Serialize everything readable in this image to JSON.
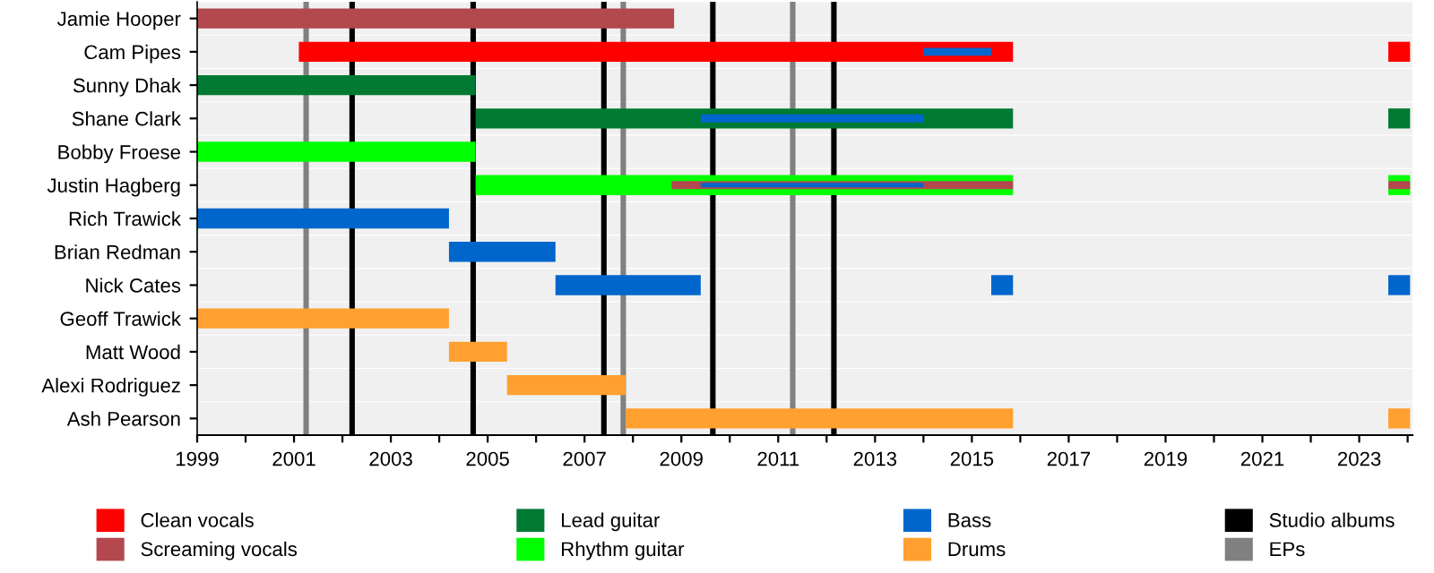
{
  "chart_data": {
    "type": "bar",
    "orientation": "horizontal",
    "grid": "y",
    "legend": "bottom",
    "categories": [
      "Jamie Hooper",
      "Cam Pipes",
      "Sunny Dhak",
      "Shane Clark",
      "Bobby Froese",
      "Justin Hagberg",
      "Rich Trawick",
      "Brian Redman",
      "Nick Cates",
      "Geoff Trawick",
      "Matt Wood",
      "Alexi Rodriguez",
      "Ash Pearson"
    ],
    "xlim": [
      1999,
      2024.1
    ],
    "xticks": [
      1999,
      {
        "value": 2000,
        "label": null
      },
      2001,
      {
        "value": 2002,
        "label": null
      },
      2003,
      {
        "value": 2004,
        "label": null
      },
      2005,
      {
        "value": 2006,
        "label": null
      },
      2007,
      {
        "value": 2008,
        "label": null
      },
      2009,
      {
        "value": 2010,
        "label": null
      },
      2011,
      {
        "value": 2012,
        "label": null
      },
      2013,
      {
        "value": 2014,
        "label": null
      },
      2015,
      {
        "value": 2016,
        "label": null
      },
      2017,
      {
        "value": 2018,
        "label": null
      },
      2019,
      {
        "value": 2020,
        "label": null
      },
      2021,
      {
        "value": 2022,
        "label": null
      },
      2023,
      {
        "value": 2024,
        "label": null
      }
    ],
    "series": [
      {
        "name": "Clean vocals",
        "color": "#ff0000",
        "base": [
          null,
          2001.1,
          null,
          null,
          null,
          null,
          null,
          null,
          null,
          null,
          null,
          null,
          null
        ],
        "values": [
          null,
          14.75,
          null,
          null,
          null,
          null,
          null,
          null,
          null,
          null,
          null,
          null,
          null
        ]
      },
      {
        "color": "#ff0000",
        "base": [
          null,
          2023.6,
          null,
          null,
          null,
          null,
          null,
          null,
          null,
          null,
          null,
          null,
          null
        ],
        "values": [
          null,
          0.45,
          null,
          null,
          null,
          null,
          null,
          null,
          null,
          null,
          null,
          null,
          null
        ]
      },
      {
        "name": "Screaming vocals",
        "color": "#b3484f",
        "base": [
          1999,
          null,
          null,
          null,
          null,
          null,
          null,
          null,
          null,
          null,
          null,
          null,
          null
        ],
        "values": [
          9.85,
          null,
          null,
          null,
          null,
          null,
          null,
          null,
          null,
          null,
          null,
          null,
          null
        ]
      },
      {
        "name": "Lead guitar",
        "color": "#007a33",
        "base": [
          null,
          null,
          1999,
          2004.75,
          null,
          null,
          null,
          null,
          null,
          null,
          null,
          null,
          null
        ],
        "values": [
          null,
          null,
          5.75,
          11.1,
          null,
          null,
          null,
          null,
          null,
          null,
          null,
          null,
          null
        ]
      },
      {
        "color": "#007a33",
        "base": [
          null,
          null,
          null,
          2023.6,
          null,
          null,
          null,
          null,
          null,
          null,
          null,
          null,
          null
        ],
        "values": [
          null,
          null,
          null,
          0.45,
          null,
          null,
          null,
          null,
          null,
          null,
          null,
          null,
          null
        ]
      },
      {
        "name": "Rhythm guitar",
        "color": "#00ff00",
        "base": [
          null,
          null,
          null,
          null,
          1999,
          2004.75,
          null,
          null,
          null,
          null,
          null,
          null,
          null
        ],
        "values": [
          null,
          null,
          null,
          null,
          5.75,
          11.1,
          null,
          null,
          null,
          null,
          null,
          null,
          null
        ]
      },
      {
        "color": "#00ff00",
        "base": [
          null,
          null,
          null,
          null,
          null,
          2023.6,
          null,
          null,
          null,
          null,
          null,
          null,
          null
        ],
        "values": [
          null,
          null,
          null,
          null,
          null,
          0.45,
          null,
          null,
          null,
          null,
          null,
          null,
          null
        ]
      },
      {
        "name": "Bass",
        "color": "#0066cc",
        "base": [
          null,
          null,
          null,
          null,
          null,
          null,
          1999,
          2004.2,
          2006.4,
          null,
          null,
          null,
          null
        ],
        "values": [
          null,
          null,
          null,
          null,
          null,
          null,
          5.2,
          2.2,
          3.0,
          null,
          null,
          null,
          null
        ]
      },
      {
        "color": "#0066cc",
        "base": [
          null,
          null,
          null,
          null,
          null,
          null,
          null,
          null,
          2015.4,
          null,
          null,
          null,
          null
        ],
        "values": [
          null,
          null,
          null,
          null,
          null,
          null,
          null,
          null,
          0.45,
          null,
          null,
          null,
          null
        ]
      },
      {
        "color": "#0066cc",
        "base": [
          null,
          null,
          null,
          null,
          null,
          null,
          null,
          null,
          2023.6,
          null,
          null,
          null,
          null
        ],
        "values": [
          null,
          null,
          null,
          null,
          null,
          null,
          null,
          null,
          0.45,
          null,
          null,
          null,
          null
        ]
      },
      {
        "name": "Drums",
        "color": "#ffa030",
        "base": [
          null,
          null,
          null,
          null,
          null,
          null,
          null,
          null,
          null,
          1999,
          2004.2,
          2005.4,
          2007.85
        ],
        "values": [
          null,
          null,
          null,
          null,
          null,
          null,
          null,
          null,
          null,
          5.2,
          1.2,
          2.45,
          8.0
        ]
      },
      {
        "color": "#ffa030",
        "base": [
          null,
          null,
          null,
          null,
          null,
          null,
          null,
          null,
          null,
          null,
          null,
          null,
          2023.6
        ],
        "values": [
          null,
          null,
          null,
          null,
          null,
          null,
          null,
          null,
          null,
          null,
          null,
          null,
          0.45
        ]
      },
      {
        "color": "#b3484f",
        "base": [
          null,
          null,
          null,
          null,
          null,
          2008.8,
          null,
          null,
          null,
          null,
          null,
          null,
          null
        ],
        "values": [
          null,
          null,
          null,
          null,
          null,
          7.05,
          null,
          null,
          null,
          null,
          null,
          null,
          null
        ]
      },
      {
        "color": "#b3484f",
        "base": [
          null,
          null,
          null,
          null,
          null,
          2023.6,
          null,
          null,
          null,
          null,
          null,
          null,
          null
        ],
        "values": [
          null,
          null,
          null,
          null,
          null,
          0.45,
          null,
          null,
          null,
          null,
          null,
          null,
          null
        ]
      },
      {
        "color": "#0066cc",
        "base": [
          null,
          2014.0,
          null,
          2009.4,
          null,
          2009.4,
          null,
          null,
          null,
          null,
          null,
          null,
          null
        ],
        "values": [
          null,
          1.4,
          null,
          4.6,
          null,
          4.6,
          null,
          null,
          null,
          null,
          null,
          null,
          null
        ]
      }
    ],
    "ref_lines": [
      {
        "axis": "x",
        "value": 2002.2,
        "label": "Studio albums",
        "color": "#000000"
      },
      {
        "axis": "x",
        "value": 2004.7,
        "color": "#000000"
      },
      {
        "axis": "x",
        "value": 2007.4,
        "color": "#000000"
      },
      {
        "axis": "x",
        "value": 2009.65,
        "color": "#000000"
      },
      {
        "axis": "x",
        "value": 2012.15,
        "color": "#000000"
      },
      {
        "axis": "x",
        "value": 2001.25,
        "label": "EPs",
        "color": "#808080"
      },
      {
        "axis": "x",
        "value": 2007.8,
        "color": "#808080"
      },
      {
        "axis": "x",
        "value": 2011.3,
        "color": "#808080"
      }
    ]
  }
}
